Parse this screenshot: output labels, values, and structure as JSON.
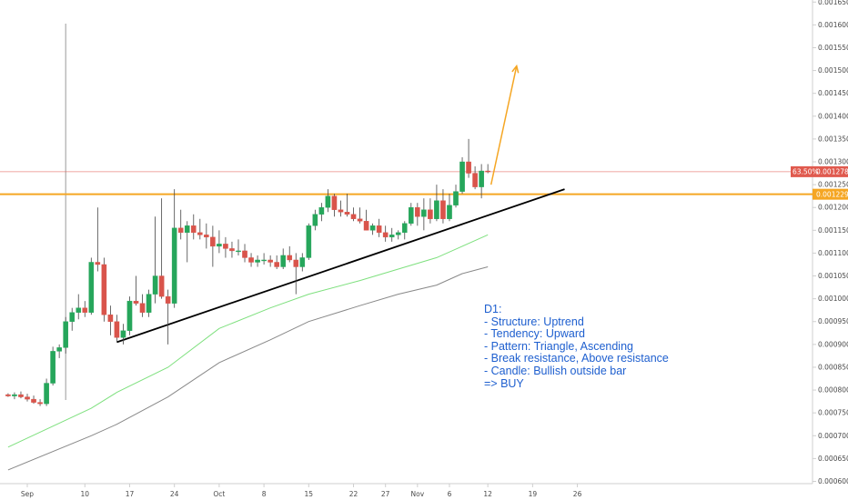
{
  "chart_data": {
    "type": "candlestick",
    "timeframe": "D1",
    "y_axis": {
      "ticks": [
        "0.00060000",
        "0.00065000",
        "0.00070000",
        "0.00075000",
        "0.00080000",
        "0.00085000",
        "0.00090000",
        "0.00095000",
        "0.00100000",
        "0.00105000",
        "0.00110000",
        "0.00115000",
        "0.00120000",
        "0.00125000",
        "0.00130000",
        "0.00135000",
        "0.00140000",
        "0.00145000",
        "0.00150000",
        "0.00155000",
        "0.00160000",
        "0.00165000"
      ],
      "range": [
        0.000595,
        0.0016545
      ]
    },
    "x_axis": {
      "ticks": [
        {
          "label": "Sep",
          "day": 0
        },
        {
          "label": "10",
          "day": 9
        },
        {
          "label": "17",
          "day": 16
        },
        {
          "label": "24",
          "day": 23
        },
        {
          "label": "Oct",
          "day": 30
        },
        {
          "label": "8",
          "day": 37
        },
        {
          "label": "15",
          "day": 44
        },
        {
          "label": "22",
          "day": 51
        },
        {
          "label": "27",
          "day": 56
        },
        {
          "label": "Nov",
          "day": 61
        },
        {
          "label": "6",
          "day": 66
        },
        {
          "label": "12",
          "day": 72
        },
        {
          "label": "19",
          "day": 79
        },
        {
          "label": "26",
          "day": 86
        }
      ]
    },
    "candles": [
      [
        -3,
        0.00079,
        0.000793,
        0.000785,
        0.000787
      ],
      [
        -2,
        0.000787,
        0.000795,
        0.00078,
        0.00079
      ],
      [
        -1,
        0.00079,
        0.000797,
        0.000782,
        0.000785
      ],
      [
        0,
        0.000785,
        0.000792,
        0.000775,
        0.00078
      ],
      [
        1,
        0.00078,
        0.000788,
        0.00077,
        0.000773
      ],
      [
        2,
        0.000773,
        0.00078,
        0.000765,
        0.00077
      ],
      [
        3,
        0.00077,
        0.000825,
        0.000765,
        0.000815
      ],
      [
        4,
        0.000815,
        0.000895,
        0.00081,
        0.000885
      ],
      [
        5,
        0.000885,
        0.0009,
        0.00087,
        0.000893
      ],
      [
        6,
        0.000893,
        0.00096,
        0.00088,
        0.00095
      ],
      [
        7,
        0.00095,
        0.00098,
        0.00093,
        0.00097
      ],
      [
        8,
        0.00097,
        0.00101,
        0.000955,
        0.00098
      ],
      [
        9,
        0.00098,
        0.000995,
        0.00096,
        0.00097
      ],
      [
        10,
        0.00097,
        0.00109,
        0.000965,
        0.00108
      ],
      [
        11,
        0.00108,
        0.0012,
        0.00106,
        0.001075
      ],
      [
        12,
        0.001075,
        0.00109,
        0.00095,
        0.000965
      ],
      [
        13,
        0.000965,
        0.000985,
        0.00092,
        0.00095
      ],
      [
        14,
        0.00095,
        0.000965,
        0.000905,
        0.000915
      ],
      [
        15,
        0.000915,
        0.000945,
        0.0009,
        0.00093
      ],
      [
        16,
        0.00093,
        0.001005,
        0.00092,
        0.000995
      ],
      [
        17,
        0.000995,
        0.00105,
        0.000985,
        0.00099
      ],
      [
        18,
        0.00099,
        0.00101,
        0.00096,
        0.00097
      ],
      [
        19,
        0.00097,
        0.00102,
        0.00096,
        0.00101
      ],
      [
        20,
        0.00101,
        0.00118,
        0.00099,
        0.00105
      ],
      [
        21,
        0.00105,
        0.00122,
        0.001,
        0.001005
      ],
      [
        22,
        0.001005,
        0.00102,
        0.0009,
        0.00099
      ],
      [
        23,
        0.00099,
        0.00124,
        0.00098,
        0.001155
      ],
      [
        24,
        0.001155,
        0.001195,
        0.00113,
        0.001145
      ],
      [
        25,
        0.001145,
        0.00117,
        0.00108,
        0.00116
      ],
      [
        26,
        0.00116,
        0.001185,
        0.00113,
        0.001145
      ],
      [
        27,
        0.001145,
        0.001175,
        0.00113,
        0.00114
      ],
      [
        28,
        0.00114,
        0.001165,
        0.00111,
        0.001135
      ],
      [
        29,
        0.001135,
        0.00116,
        0.00107,
        0.001115
      ],
      [
        30,
        0.001115,
        0.00115,
        0.0011,
        0.00112
      ],
      [
        31,
        0.00112,
        0.001135,
        0.00109,
        0.00111
      ],
      [
        32,
        0.00111,
        0.001125,
        0.00109,
        0.001105
      ],
      [
        33,
        0.001105,
        0.00113,
        0.001095,
        0.001105
      ],
      [
        34,
        0.001105,
        0.00112,
        0.00108,
        0.00109
      ],
      [
        35,
        0.00109,
        0.0011,
        0.00107,
        0.00108
      ],
      [
        36,
        0.00108,
        0.001095,
        0.00107,
        0.001085
      ],
      [
        37,
        0.001085,
        0.0011,
        0.001075,
        0.001085
      ],
      [
        38,
        0.001085,
        0.001095,
        0.00107,
        0.00108
      ],
      [
        39,
        0.00108,
        0.001095,
        0.001065,
        0.00107
      ],
      [
        40,
        0.00107,
        0.00111,
        0.001065,
        0.001095
      ],
      [
        41,
        0.001095,
        0.001115,
        0.00108,
        0.001085
      ],
      [
        42,
        0.001085,
        0.0011,
        0.00101,
        0.00107
      ],
      [
        43,
        0.00107,
        0.0011,
        0.00106,
        0.00109
      ],
      [
        44,
        0.00109,
        0.001165,
        0.001085,
        0.00116
      ],
      [
        45,
        0.00116,
        0.001195,
        0.00115,
        0.001185
      ],
      [
        46,
        0.001185,
        0.00121,
        0.00117,
        0.0012
      ],
      [
        47,
        0.0012,
        0.00124,
        0.00119,
        0.001225
      ],
      [
        48,
        0.001225,
        0.00123,
        0.00118,
        0.001195
      ],
      [
        49,
        0.001195,
        0.001215,
        0.00118,
        0.00119
      ],
      [
        50,
        0.00119,
        0.00123,
        0.00118,
        0.001185
      ],
      [
        51,
        0.001185,
        0.0012,
        0.00117,
        0.001175
      ],
      [
        52,
        0.001175,
        0.0012,
        0.001165,
        0.00117
      ],
      [
        53,
        0.00117,
        0.001195,
        0.00115,
        0.00115
      ],
      [
        54,
        0.00115,
        0.001165,
        0.00114,
        0.00116
      ],
      [
        55,
        0.00116,
        0.001175,
        0.001135,
        0.001145
      ],
      [
        56,
        0.001145,
        0.00116,
        0.001125,
        0.001135
      ],
      [
        57,
        0.001135,
        0.001155,
        0.001125,
        0.00114
      ],
      [
        58,
        0.00114,
        0.00115,
        0.00113,
        0.001145
      ],
      [
        59,
        0.001145,
        0.00117,
        0.00113,
        0.001165
      ],
      [
        60,
        0.001165,
        0.00121,
        0.00116,
        0.0012
      ],
      [
        61,
        0.0012,
        0.00121,
        0.00116,
        0.00118
      ],
      [
        62,
        0.00118,
        0.00122,
        0.00115,
        0.001195
      ],
      [
        63,
        0.001195,
        0.00122,
        0.001165,
        0.001175
      ],
      [
        64,
        0.001175,
        0.00125,
        0.00117,
        0.001215
      ],
      [
        65,
        0.001215,
        0.00124,
        0.001165,
        0.001175
      ],
      [
        66,
        0.001175,
        0.00123,
        0.00117,
        0.001205
      ],
      [
        67,
        0.001205,
        0.00125,
        0.0012,
        0.001235
      ],
      [
        68,
        0.001235,
        0.00131,
        0.00123,
        0.0013
      ],
      [
        69,
        0.0013,
        0.00135,
        0.001265,
        0.001275
      ],
      [
        70,
        0.001275,
        0.00129,
        0.00124,
        0.001245
      ],
      [
        71,
        0.001245,
        0.001295,
        0.00122,
        0.00128
      ],
      [
        72,
        0.00128,
        0.001295,
        0.001275,
        0.001278
      ]
    ],
    "moving_averages": [
      {
        "color": "#7ee07e",
        "points": [
          [
            -3,
            0.000675
          ],
          [
            10,
            0.00076
          ],
          [
            14,
            0.000795
          ],
          [
            22,
            0.00085
          ],
          [
            30,
            0.000935
          ],
          [
            38,
            0.00098
          ],
          [
            44,
            0.00101
          ],
          [
            52,
            0.00104
          ],
          [
            58,
            0.001065
          ],
          [
            64,
            0.00109
          ],
          [
            68,
            0.001115
          ],
          [
            72,
            0.00114
          ]
        ]
      },
      {
        "color": "#888888",
        "points": [
          [
            -3,
            0.000625
          ],
          [
            10,
            0.0007
          ],
          [
            14,
            0.000725
          ],
          [
            22,
            0.000785
          ],
          [
            30,
            0.00086
          ],
          [
            38,
            0.00091
          ],
          [
            44,
            0.00095
          ],
          [
            52,
            0.000985
          ],
          [
            58,
            0.00101
          ],
          [
            64,
            0.00103
          ],
          [
            68,
            0.001055
          ],
          [
            72,
            0.00107
          ]
        ]
      }
    ],
    "trendline": {
      "color": "#000000",
      "from": [
        14,
        0.000905
      ],
      "to": [
        84,
        0.00124
      ]
    },
    "resistance": {
      "color": "#f5a623",
      "price": 0.001229
    },
    "current_price": {
      "color": "#e05a4e",
      "price": 0.00127834
    },
    "arrow": {
      "color": "#f5a623",
      "from": [
        72.5,
        0.00125
      ],
      "to": [
        76.5,
        0.00151
      ]
    },
    "crosshair_day": 6,
    "colors": {
      "up": "#26a65b",
      "down": "#d9544b",
      "axis_line": "#cfcfcf",
      "grid": "#eeeeee"
    },
    "price_tags": {
      "current": {
        "pct": "63.50%",
        "price": "0.00127834"
      },
      "resistance": "0.00122900"
    },
    "annotation_lines": [
      "D1:",
      "- Structure: Uptrend",
      "- Tendency: Upward",
      "- Pattern: Triangle, Ascending",
      "- Break resistance, Above resistance",
      "- Candle: Bullish outside bar",
      "=> BUY"
    ]
  }
}
